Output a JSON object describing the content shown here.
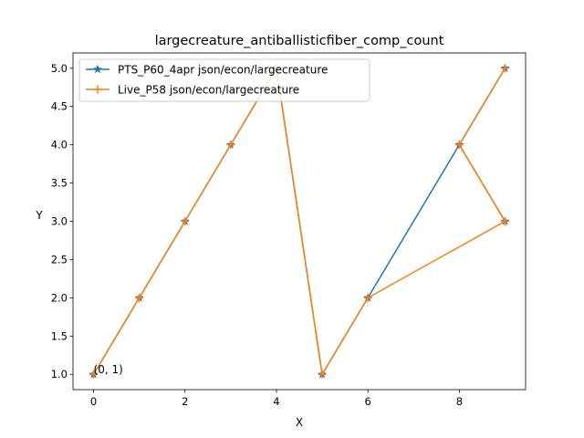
{
  "chart_data": {
    "type": "line",
    "title": "largecreature_antiballisticfiber_comp_count",
    "xlabel": "X",
    "ylabel": "Y",
    "xlim": [
      -0.45,
      9.45
    ],
    "ylim": [
      0.8,
      5.2
    ],
    "xticks": [
      0,
      2,
      4,
      6,
      8
    ],
    "yticks": [
      1.0,
      1.5,
      2.0,
      2.5,
      3.0,
      3.5,
      4.0,
      4.5,
      5.0
    ],
    "xtick_labels": [
      "0",
      "2",
      "4",
      "6",
      "8"
    ],
    "ytick_labels": [
      "1.0",
      "1.5",
      "2.0",
      "2.5",
      "3.0",
      "3.5",
      "4.0",
      "4.5",
      "5.0"
    ],
    "grid": false,
    "legend_position": "upper-left",
    "series": [
      {
        "name": "PTS_P60_4apr json/econ/largecreature",
        "color": "#1f77b4",
        "marker": "star",
        "x": [
          0,
          1,
          2,
          3,
          4,
          5,
          6,
          8,
          9,
          8,
          9
        ],
        "y": [
          1,
          2,
          3,
          4,
          5,
          1,
          2,
          4,
          3,
          4,
          5
        ]
      },
      {
        "name": "Live_P58 json/econ/largecreature",
        "color": "#ff7f0e",
        "marker": "plus",
        "x": [
          0,
          1,
          2,
          3,
          4,
          5,
          6,
          9,
          8,
          9
        ],
        "y": [
          1,
          2,
          3,
          4,
          5,
          1,
          2,
          3,
          4,
          5
        ]
      }
    ],
    "annotations": [
      {
        "text": "(0, 1)",
        "x": 0,
        "y": 1
      }
    ]
  }
}
